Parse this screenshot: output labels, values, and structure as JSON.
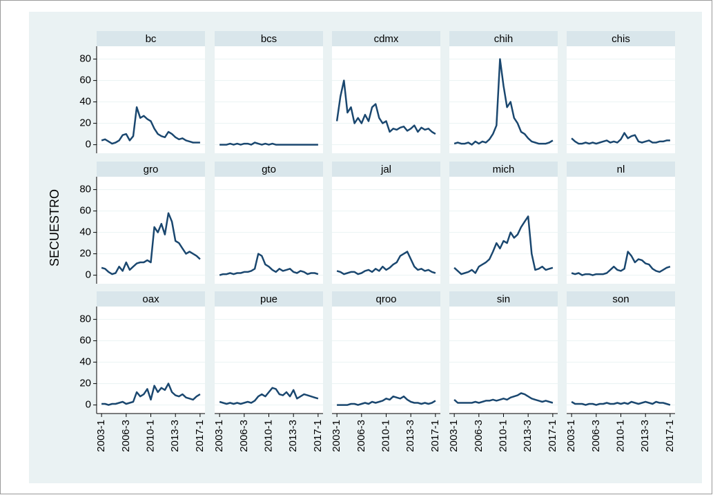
{
  "chart_data": {
    "type": "line",
    "y_label": "SECUESTRO",
    "color": "#1a476f",
    "grid": true,
    "x": [
      2003,
      2003.5,
      2004,
      2004.5,
      2005,
      2005.5,
      2006,
      2006.5,
      2007,
      2007.5,
      2008,
      2008.5,
      2009,
      2009.5,
      2010,
      2010.5,
      2011,
      2011.5,
      2012,
      2012.5,
      2013,
      2013.5,
      2014,
      2014.5,
      2015,
      2015.5,
      2016,
      2016.5,
      2017
    ],
    "xlim": [
      2002.3,
      2017.7
    ],
    "xticks": [
      {
        "value": 2003,
        "label": "2003-1"
      },
      {
        "value": 2006.5,
        "label": "2006-3"
      },
      {
        "value": 2010,
        "label": "2010-1"
      },
      {
        "value": 2013.5,
        "label": "2013-3"
      },
      {
        "value": 2017,
        "label": "2017-1"
      }
    ],
    "ylim": [
      -8,
      92
    ],
    "yticks": [
      0,
      20,
      40,
      60,
      80
    ],
    "panels": [
      {
        "name": "bc",
        "values": [
          4,
          5,
          3,
          1,
          2,
          4,
          9,
          10,
          4,
          8,
          35,
          25,
          27,
          24,
          22,
          15,
          10,
          8,
          7,
          12,
          10,
          7,
          5,
          6,
          4,
          3,
          2,
          2,
          2
        ]
      },
      {
        "name": "bcs",
        "values": [
          0,
          0,
          0,
          1,
          0,
          1,
          0,
          1,
          1,
          0,
          2,
          1,
          0,
          1,
          0,
          1,
          0,
          0,
          0,
          0,
          0,
          0,
          0,
          0,
          0,
          0,
          0,
          0,
          0
        ]
      },
      {
        "name": "cdmx",
        "values": [
          22,
          45,
          60,
          30,
          35,
          20,
          25,
          20,
          28,
          22,
          35,
          38,
          25,
          20,
          22,
          12,
          15,
          14,
          16,
          17,
          13,
          15,
          18,
          12,
          16,
          14,
          15,
          12,
          10
        ]
      },
      {
        "name": "chih",
        "values": [
          1,
          2,
          1,
          1,
          2,
          0,
          3,
          1,
          3,
          2,
          5,
          10,
          18,
          80,
          55,
          35,
          40,
          25,
          20,
          12,
          10,
          6,
          3,
          2,
          1,
          1,
          1,
          2,
          4
        ]
      },
      {
        "name": "chis",
        "values": [
          6,
          3,
          1,
          1,
          2,
          1,
          2,
          1,
          2,
          3,
          4,
          2,
          3,
          2,
          5,
          11,
          6,
          8,
          9,
          3,
          2,
          3,
          4,
          2,
          2,
          3,
          3,
          4,
          4
        ]
      },
      {
        "name": "gro",
        "values": [
          7,
          6,
          3,
          1,
          2,
          8,
          4,
          12,
          5,
          8,
          11,
          12,
          12,
          14,
          12,
          45,
          40,
          48,
          38,
          58,
          50,
          32,
          30,
          25,
          20,
          22,
          20,
          18,
          15
        ]
      },
      {
        "name": "gto",
        "values": [
          0,
          1,
          1,
          2,
          1,
          2,
          2,
          3,
          3,
          4,
          6,
          20,
          18,
          10,
          8,
          5,
          3,
          6,
          4,
          5,
          6,
          3,
          2,
          4,
          3,
          1,
          2,
          2,
          1
        ]
      },
      {
        "name": "jal",
        "values": [
          4,
          3,
          1,
          2,
          3,
          3,
          1,
          2,
          4,
          5,
          3,
          6,
          4,
          8,
          5,
          7,
          10,
          12,
          18,
          20,
          22,
          15,
          8,
          5,
          6,
          4,
          5,
          3,
          2
        ]
      },
      {
        "name": "mich",
        "values": [
          7,
          4,
          1,
          2,
          3,
          5,
          2,
          8,
          10,
          12,
          15,
          22,
          30,
          25,
          32,
          30,
          40,
          35,
          38,
          45,
          50,
          55,
          20,
          5,
          6,
          8,
          5,
          6,
          7
        ]
      },
      {
        "name": "nl",
        "values": [
          2,
          1,
          2,
          0,
          1,
          1,
          0,
          1,
          1,
          1,
          2,
          5,
          8,
          5,
          4,
          6,
          22,
          18,
          12,
          15,
          14,
          11,
          10,
          6,
          4,
          3,
          5,
          7,
          8
        ]
      },
      {
        "name": "oax",
        "values": [
          1,
          1,
          0,
          1,
          1,
          2,
          3,
          1,
          2,
          3,
          12,
          8,
          10,
          15,
          5,
          18,
          12,
          16,
          14,
          20,
          12,
          9,
          8,
          10,
          7,
          6,
          5,
          8,
          10
        ]
      },
      {
        "name": "pue",
        "values": [
          3,
          2,
          1,
          2,
          1,
          2,
          1,
          2,
          3,
          2,
          4,
          8,
          10,
          8,
          12,
          16,
          15,
          10,
          9,
          12,
          8,
          14,
          6,
          8,
          10,
          9,
          8,
          7,
          6
        ]
      },
      {
        "name": "qroo",
        "values": [
          0,
          0,
          0,
          0,
          1,
          1,
          0,
          1,
          2,
          1,
          3,
          2,
          3,
          4,
          6,
          5,
          8,
          7,
          6,
          8,
          5,
          3,
          2,
          2,
          1,
          2,
          1,
          2,
          4
        ]
      },
      {
        "name": "sin",
        "values": [
          5,
          2,
          2,
          2,
          2,
          2,
          3,
          2,
          3,
          4,
          4,
          5,
          4,
          5,
          6,
          5,
          7,
          8,
          9,
          11,
          10,
          8,
          6,
          5,
          4,
          3,
          4,
          3,
          2
        ]
      },
      {
        "name": "son",
        "values": [
          3,
          1,
          1,
          1,
          0,
          1,
          1,
          0,
          1,
          1,
          2,
          1,
          1,
          2,
          1,
          2,
          1,
          3,
          2,
          1,
          2,
          3,
          2,
          1,
          3,
          2,
          2,
          1,
          0
        ]
      }
    ]
  }
}
